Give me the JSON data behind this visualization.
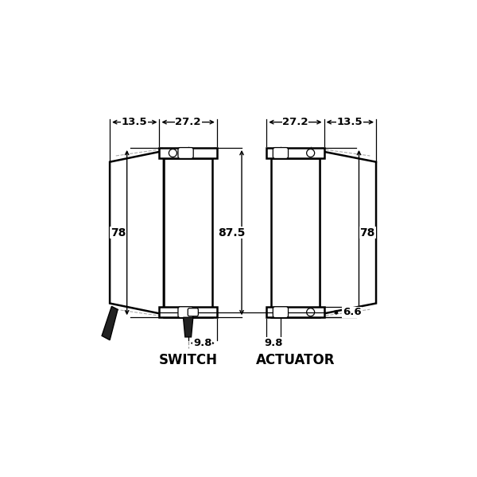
{
  "bg_color": "#ffffff",
  "line_color": "#000000",
  "label_switch": "SWITCH",
  "label_actuator": "ACTUATOR",
  "dims": {
    "w272": "27.2",
    "h78": "78",
    "h875": "87.5",
    "s135": "13.5",
    "b98": "9.8",
    "b66": "6.6"
  }
}
